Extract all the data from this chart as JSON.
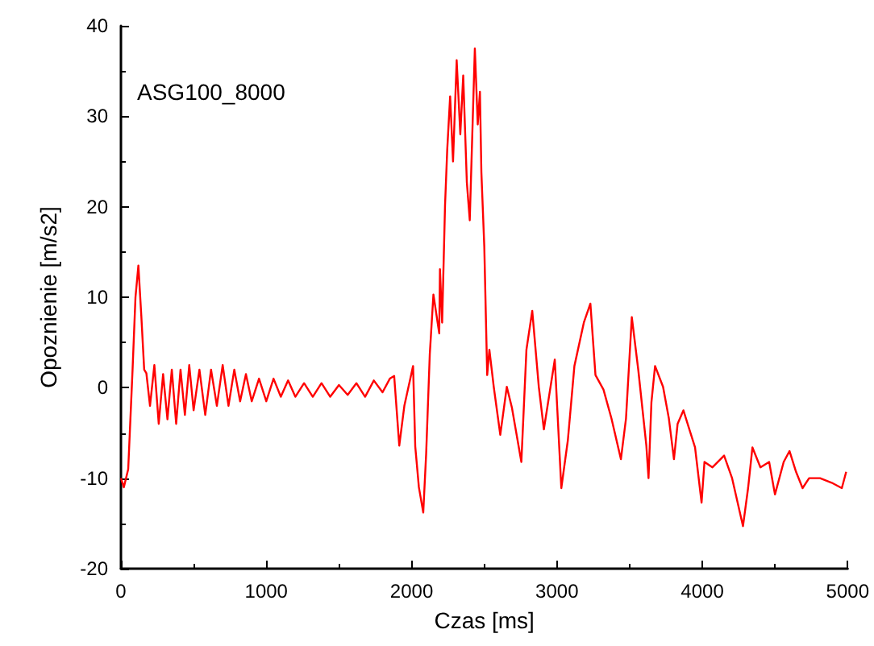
{
  "chart_data": {
    "type": "line",
    "xlabel": "Czas [ms]",
    "ylabel": "Opoznienie [m/s2]",
    "annotations": [
      "ASG100_8000"
    ],
    "xlim": [
      0,
      5000
    ],
    "xticks": [
      0,
      1000,
      2000,
      3000,
      4000,
      5000
    ],
    "ylim": [
      -20,
      40
    ],
    "yticks": [
      -20,
      -10,
      0,
      10,
      20,
      30,
      40
    ],
    "marker": "none",
    "line_style": "solid",
    "series": [
      {
        "color": "#ff0000",
        "x": [
          0,
          20,
          50,
          80,
          100,
          120,
          140,
          160,
          175,
          200,
          230,
          260,
          290,
          320,
          350,
          380,
          410,
          440,
          470,
          500,
          540,
          580,
          620,
          660,
          700,
          740,
          780,
          820,
          860,
          900,
          950,
          1000,
          1050,
          1100,
          1150,
          1200,
          1260,
          1320,
          1380,
          1440,
          1500,
          1560,
          1620,
          1680,
          1740,
          1800,
          1850,
          1880,
          1915,
          1950,
          2010,
          2025,
          2050,
          2080,
          2100,
          2125,
          2150,
          2190,
          2195,
          2210,
          2230,
          2245,
          2265,
          2285,
          2310,
          2335,
          2355,
          2380,
          2400,
          2435,
          2455,
          2470,
          2480,
          2500,
          2520,
          2535,
          2565,
          2610,
          2655,
          2690,
          2755,
          2790,
          2830,
          2875,
          2910,
          2985,
          3030,
          3075,
          3120,
          3185,
          3230,
          3265,
          3320,
          3375,
          3440,
          3475,
          3515,
          3560,
          3615,
          3630,
          3650,
          3675,
          3730,
          3770,
          3805,
          3830,
          3870,
          3905,
          3950,
          3995,
          4015,
          4070,
          4150,
          4205,
          4280,
          4315,
          4345,
          4400,
          4460,
          4500,
          4560,
          4600,
          4645,
          4690,
          4735,
          4810,
          4890,
          4960,
          4990
        ],
        "values": [
          -10,
          -11,
          -9,
          2,
          10,
          13.5,
          8,
          2,
          1.6,
          -2,
          2.5,
          -4,
          1.5,
          -3.5,
          2,
          -4,
          2,
          -3,
          2.5,
          -2.5,
          2,
          -3,
          2,
          -2,
          2.5,
          -2,
          2,
          -1.5,
          1.5,
          -1.5,
          1,
          -1.5,
          1,
          -1,
          0.8,
          -1,
          0.5,
          -1,
          0.5,
          -1,
          0.3,
          -0.8,
          0.5,
          -1,
          0.8,
          -0.5,
          1,
          1.3,
          -6.4,
          -2,
          2.4,
          -6.5,
          -11,
          -13.8,
          -7.3,
          3.7,
          10.3,
          6,
          13.1,
          7.2,
          20.2,
          26.3,
          32.2,
          25,
          36.2,
          28,
          34.5,
          22.7,
          18.5,
          37.5,
          29.1,
          32.7,
          23.8,
          15.6,
          1.4,
          4.2,
          0.1,
          -5.2,
          0.1,
          -2.2,
          -8.2,
          4.2,
          8.5,
          0.1,
          -4.6,
          3.1,
          -11.1,
          -5.8,
          2.4,
          7.2,
          9.3,
          1.4,
          -0.2,
          -3.4,
          -7.9,
          -3.4,
          7.8,
          1.9,
          -6.4,
          -10,
          -1.6,
          2.4,
          0.1,
          -3.4,
          -7.9,
          -4,
          -2.5,
          -4.3,
          -6.6,
          -12.7,
          -8.2,
          -8.8,
          -7.5,
          -10,
          -15.3,
          -11.1,
          -6.6,
          -8.8,
          -8.2,
          -11.8,
          -8.2,
          -7,
          -9.3,
          -11.1,
          -10,
          -10,
          -10.5,
          -11.1,
          -9.3
        ]
      }
    ]
  }
}
